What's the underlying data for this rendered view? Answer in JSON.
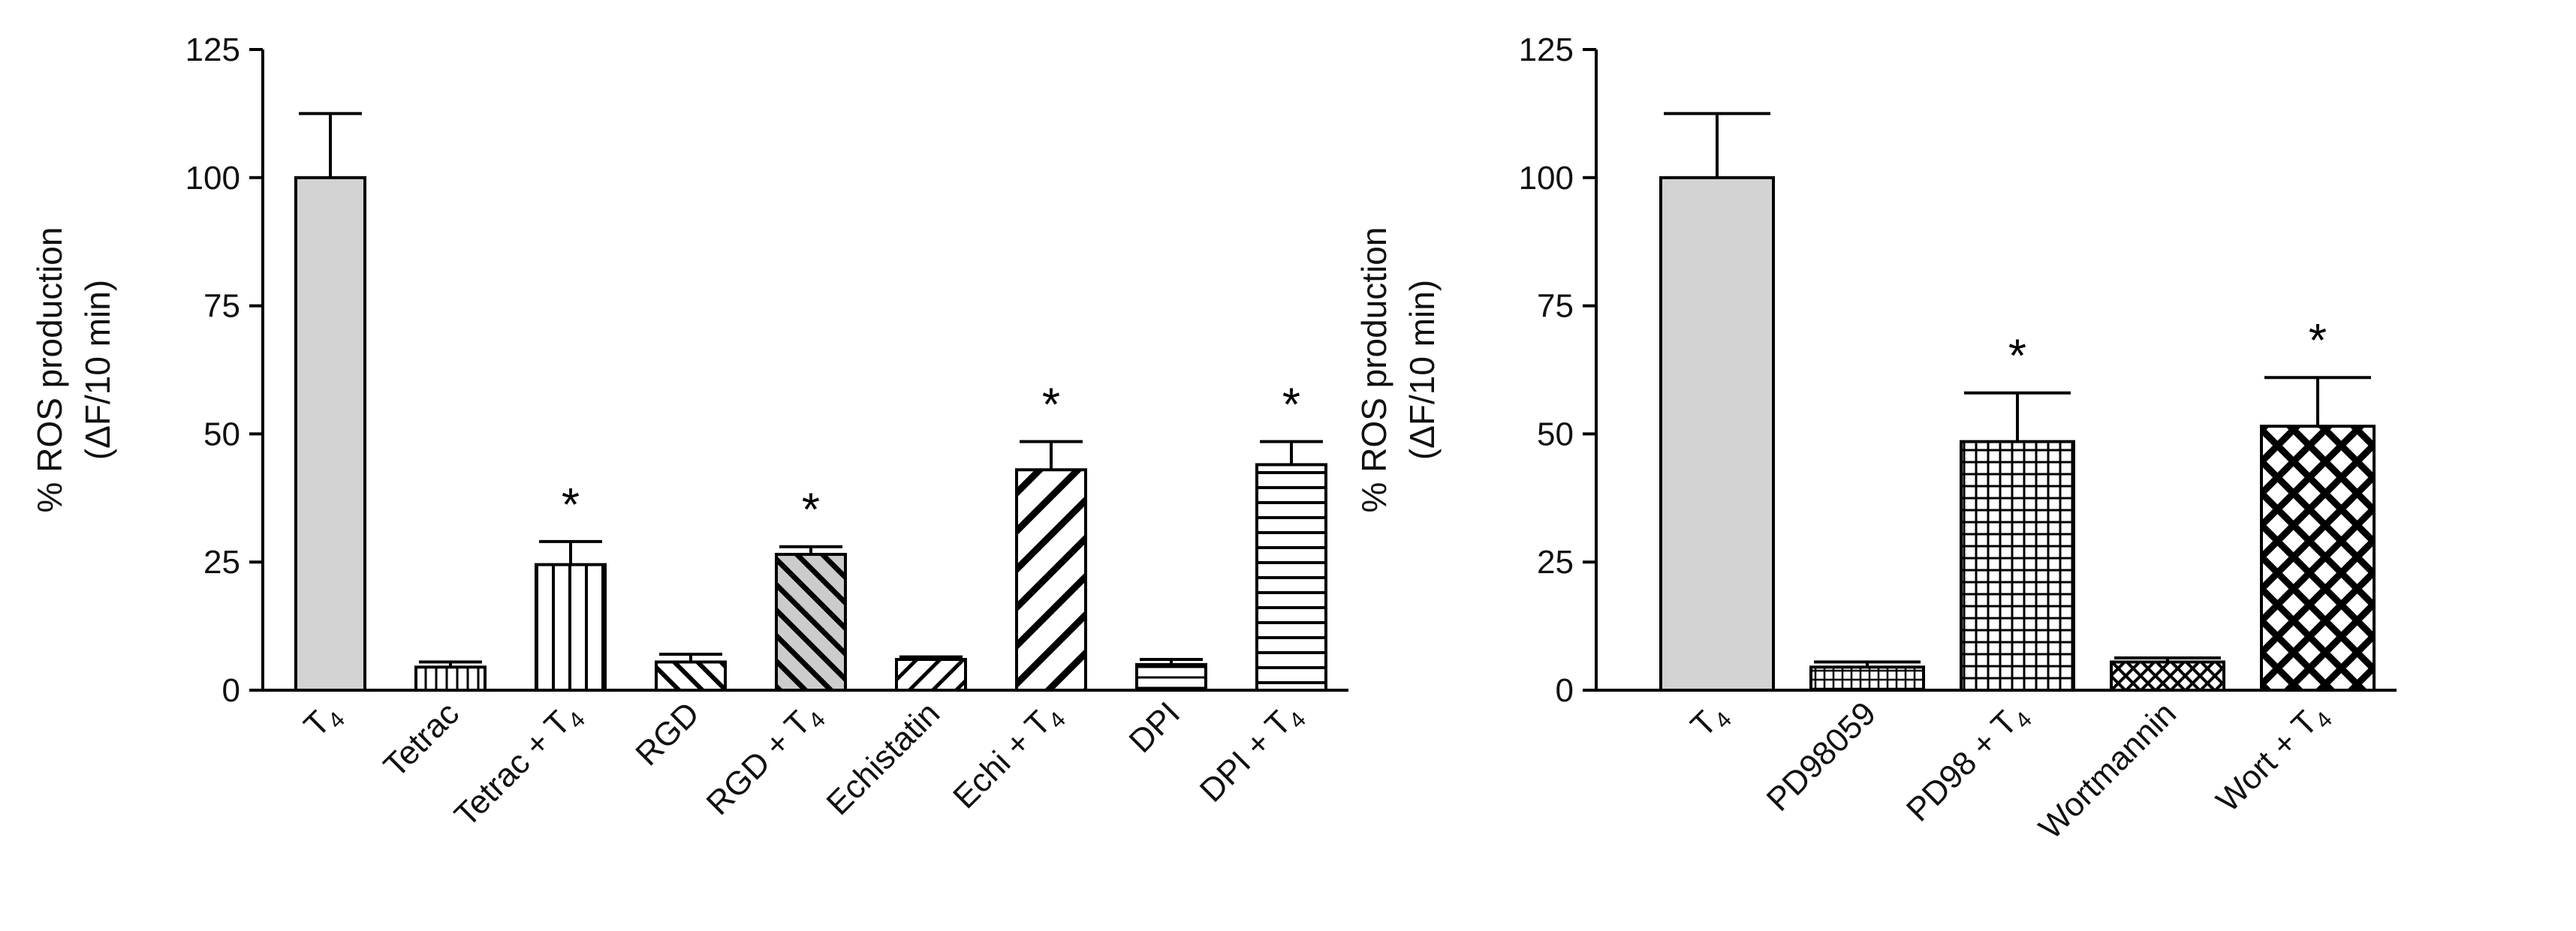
{
  "chart_data": [
    {
      "type": "bar",
      "ylabel": "% ROS production",
      "ylabel2": "(ΔF/10 min)",
      "ylim": [
        0,
        125
      ],
      "yticks": [
        0,
        25,
        50,
        75,
        100,
        125
      ],
      "grid": false,
      "bars": [
        {
          "label": "T",
          "sub": "4",
          "value": 100,
          "error": 12.5,
          "significant": false,
          "pattern": "solid"
        },
        {
          "label": "Tetrac",
          "sub": "",
          "value": 4.5,
          "error": 1.0,
          "significant": false,
          "pattern": "vlines-fine"
        },
        {
          "label": "Tetrac + T",
          "sub": "4",
          "value": 24.5,
          "error": 4.5,
          "significant": true,
          "pattern": "vlines"
        },
        {
          "label": "RGD",
          "sub": "",
          "value": 5.5,
          "error": 1.5,
          "significant": false,
          "pattern": "diag-back-fine"
        },
        {
          "label": "RGD + T",
          "sub": "4",
          "value": 26.5,
          "error": 1.5,
          "significant": true,
          "pattern": "diag-back"
        },
        {
          "label": "Echistatin",
          "sub": "",
          "value": 6.0,
          "error": 0.5,
          "significant": false,
          "pattern": "diag-fwd-fine"
        },
        {
          "label": "Echi + T",
          "sub": "4",
          "value": 43.0,
          "error": 5.5,
          "significant": true,
          "pattern": "diag-fwd"
        },
        {
          "label": "DPI",
          "sub": "",
          "value": 5.0,
          "error": 1.0,
          "significant": false,
          "pattern": "hlines-fine"
        },
        {
          "label": "DPI + T",
          "sub": "4",
          "value": 44.0,
          "error": 4.5,
          "significant": true,
          "pattern": "hlines"
        }
      ]
    },
    {
      "type": "bar",
      "ylabel": "% ROS production",
      "ylabel2": "(ΔF/10 min)",
      "ylim": [
        0,
        125
      ],
      "yticks": [
        0,
        25,
        50,
        75,
        100,
        125
      ],
      "grid": false,
      "bars": [
        {
          "label": "T",
          "sub": "4",
          "value": 100,
          "error": 12.5,
          "significant": false,
          "pattern": "solid"
        },
        {
          "label": "PD98059",
          "sub": "",
          "value": 4.5,
          "error": 1.0,
          "significant": false,
          "pattern": "grid-fine"
        },
        {
          "label": "PD98 + T",
          "sub": "4",
          "value": 48.5,
          "error": 9.5,
          "significant": true,
          "pattern": "grid"
        },
        {
          "label": "Wortmannin",
          "sub": "",
          "value": 5.5,
          "error": 0.8,
          "significant": false,
          "pattern": "cross-fine"
        },
        {
          "label": "Wort + T",
          "sub": "4",
          "value": 51.5,
          "error": 9.5,
          "significant": true,
          "pattern": "cross"
        }
      ]
    }
  ],
  "significance_marker": "*"
}
